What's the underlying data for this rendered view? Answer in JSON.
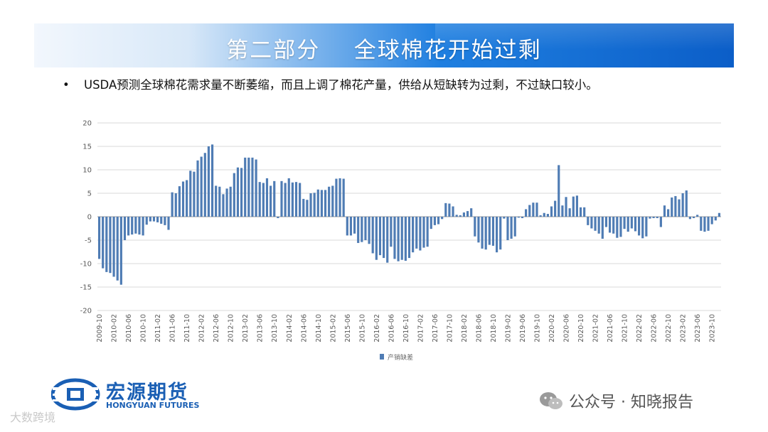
{
  "header": {
    "title": "第二部分    全球棉花开始过剩"
  },
  "bullet": {
    "symbol": "•",
    "text": "USDA预测全球棉花需求量不断萎缩，而且上调了棉花产量，供给从短缺转为过剩，不过缺口较小。"
  },
  "brand": {
    "name_cn": "宏源期货",
    "name_en": "HONGYUAN FUTURES"
  },
  "watermarks": {
    "bottom_left": "大数跨境",
    "wechat": "公众号 · 知晓报告"
  },
  "colors": {
    "bar": "#4f7cb4",
    "banner_dark": "#0b5ec8",
    "brand": "#1a5fb4"
  },
  "chart_data": {
    "type": "bar",
    "ylim": [
      -20,
      20
    ],
    "yticks": [
      20,
      15,
      10,
      5,
      0,
      -5,
      -10,
      -15,
      -20
    ],
    "xticks": [
      "2009-10",
      "2010-02",
      "2010-06",
      "2010-10",
      "2011-02",
      "2011-06",
      "2011-10",
      "2012-02",
      "2012-06",
      "2012-10",
      "2013-02",
      "2013-06",
      "2013-10",
      "2014-02",
      "2014-06",
      "2014-10",
      "2015-02",
      "2015-06",
      "2015-10",
      "2016-02",
      "2016-06",
      "2016-10",
      "2017-02",
      "2017-06",
      "2017-10",
      "2018-02",
      "2018-06",
      "2018-10",
      "2019-02",
      "2019-06",
      "2019-10",
      "2020-02",
      "2020-06",
      "2020-10",
      "2021-02",
      "2021-06",
      "2021-10",
      "2022-02",
      "2022-06",
      "2022-10",
      "2023-02",
      "2023-06",
      "2023-10"
    ],
    "start_month": "2009-10",
    "legend": "产销缺差",
    "legend_position": "bottom",
    "grid": true,
    "series": [
      {
        "name": "产销缺差",
        "values": [
          -9,
          -11,
          -11.8,
          -12,
          -12.8,
          -13.6,
          -14.5,
          -5,
          -4,
          -3.8,
          -3.6,
          -3.8,
          -4,
          -1.7,
          -1,
          -1,
          -1.2,
          -1.5,
          -1.8,
          -2.8,
          5.2,
          5,
          6.5,
          7.5,
          7.8,
          9.8,
          9.6,
          12,
          12.8,
          13.6,
          15,
          15.4,
          6.6,
          6.4,
          4.8,
          6,
          6.4,
          9.3,
          10.5,
          10.4,
          12.6,
          12.6,
          12.6,
          12.2,
          7.4,
          7.2,
          8.2,
          6.6,
          7.6,
          -0.3,
          7.6,
          7.2,
          8.2,
          7.3,
          7.4,
          7.2,
          3.8,
          3.6,
          5,
          5.1,
          5.8,
          5.7,
          5.7,
          6.4,
          6.6,
          8.1,
          8.2,
          8.1,
          -4,
          -4,
          -3.6,
          -5.6,
          -5.4,
          -5,
          -5.8,
          -7.8,
          -9.2,
          -8.2,
          -8.8,
          -9.8,
          -6.4,
          -9,
          -9.5,
          -9.2,
          -9.4,
          -8.8,
          -7.6,
          -6.8,
          -7.2,
          -6.6,
          -6.4,
          -2.6,
          -1.8,
          -1.6,
          -0.5,
          2.9,
          2.8,
          2.2,
          0.4,
          0.3,
          0.9,
          1.2,
          1.8,
          -4.2,
          -5.5,
          -6.8,
          -7,
          -6,
          -6.2,
          -7.6,
          -7,
          -0.4,
          -5,
          -4.7,
          -4.2,
          -0.2,
          -0.3,
          1.6,
          2.5,
          3,
          3,
          0.3,
          0.8,
          0.6,
          2.2,
          3.4,
          11,
          2.4,
          4.2,
          1.8,
          4.3,
          4.5,
          2,
          2,
          -1.8,
          -2.5,
          -3,
          -3.6,
          -4.7,
          -2.2,
          -3.4,
          -3.6,
          -4.5,
          -4.3,
          -2.6,
          -3.2,
          -2.5,
          -3.1,
          -4,
          -4.6,
          -4.2,
          -0.4,
          -0.3,
          -0.3,
          -2.2,
          2.4,
          1.6,
          4.1,
          4.4,
          3.7,
          5,
          5.6,
          -0.5,
          -0.3,
          0.4,
          -3,
          -3.2,
          -3,
          -1.6,
          -0.8,
          0.8
        ]
      }
    ]
  }
}
